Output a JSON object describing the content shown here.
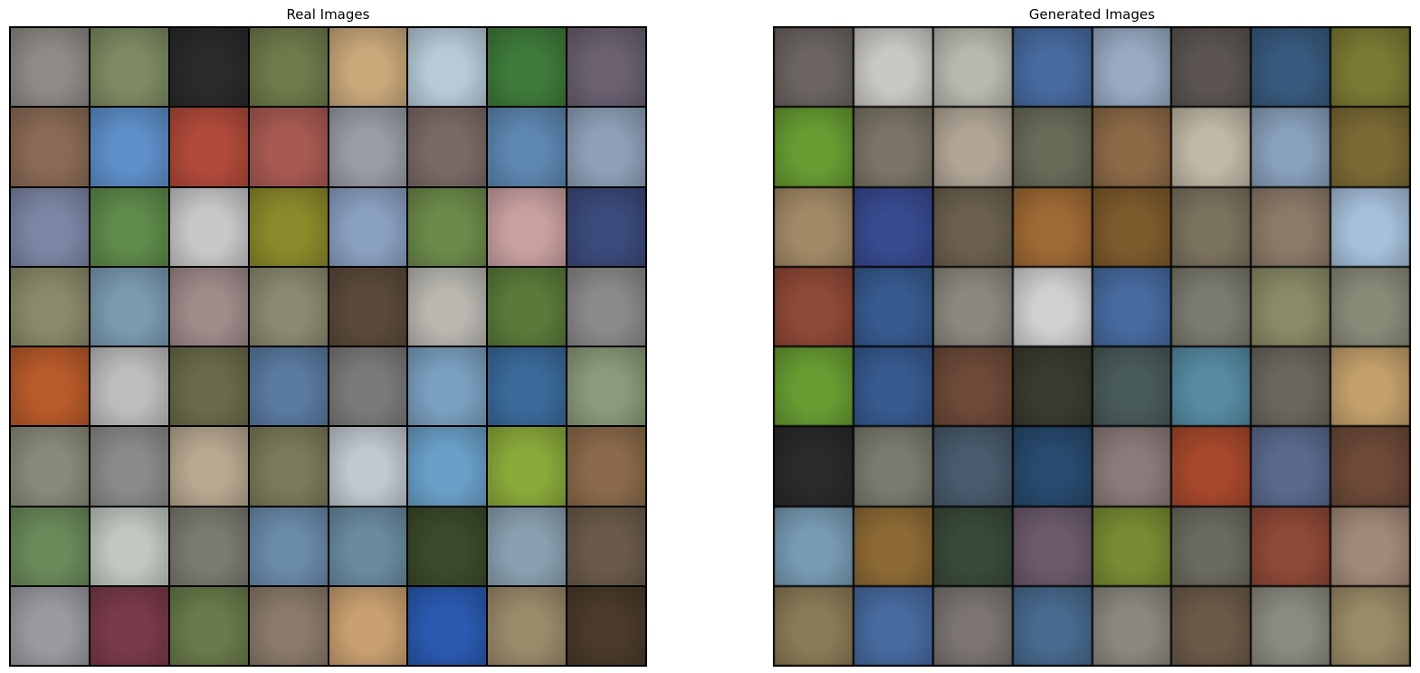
{
  "figure": {
    "panels": [
      {
        "id": "real",
        "title": "Real Images",
        "rows": 8,
        "cols": 8,
        "tiles": [
          [
            "#8e8a85",
            "#7d8a62",
            "#2a2a2a",
            "#6d7a4a",
            "#c9a87a",
            "#b7cad8",
            "#3e7a3a",
            "#6a6070"
          ],
          [
            "#8a6a55",
            "#5e8fc9",
            "#b14a3a",
            "#a85a52",
            "#9a9ca5",
            "#7a6a66",
            "#5d86b0",
            "#8ea0b8"
          ],
          [
            "#7c86a4",
            "#5e8a4a",
            "#c9c7c9",
            "#8a8a2a",
            "#8aa0c0",
            "#6c8a4a",
            "#c9a0a0",
            "#3a4a7a"
          ],
          [
            "#8a8a6a",
            "#7a9ab0",
            "#a08a8a",
            "#8a8a70",
            "#5a4a3a",
            "#b9b7b0",
            "#5a7a3a",
            "#8a8a8a"
          ],
          [
            "#b85a2a",
            "#bdbdbd",
            "#6a6a4a",
            "#5a7aa0",
            "#7a7a7a",
            "#7aa0c0",
            "#3a6a9a",
            "#8a9a7a"
          ],
          [
            "#8a8a7a",
            "#8a8a8a",
            "#b8a890",
            "#7a7a5a",
            "#c0c8d0",
            "#6aa0c8",
            "#8aaa3a",
            "#8a6a4a"
          ],
          [
            "#6a8a5a",
            "#c0c8c0",
            "#7a7a70",
            "#6a8aaa",
            "#6a8aa0",
            "#3a4a2a",
            "#8aa0b0",
            "#6a5a4a"
          ],
          [
            "#9a9aa0",
            "#7a3a4a",
            "#6a7a4a",
            "#8a7a6a",
            "#c9a070",
            "#2a5ab0",
            "#9a8a6a",
            "#4a3a2a"
          ]
        ]
      },
      {
        "id": "generated",
        "title": "Generated Images",
        "rows": 8,
        "cols": 8,
        "tiles": [
          [
            "#6a6460",
            "#c9c8c4",
            "#b7b8b0",
            "#4a6a9a",
            "#9aaac0",
            "#5a5450",
            "#3a5a7a",
            "#7a7a3a"
          ],
          [
            "#6a9a3a",
            "#7a7468",
            "#b0a698",
            "#6a6a5a",
            "#8a6a4a",
            "#c0b8a8",
            "#8aa0b8",
            "#7a6a3a"
          ],
          [
            "#a08a6a",
            "#3a4a8a",
            "#6a6050",
            "#9a6a3a",
            "#7a5a30",
            "#7a7260",
            "#8a7a6a",
            "#a8c0d8"
          ],
          [
            "#8a4a3a",
            "#3a5a8a",
            "#8a8880",
            "#d0d0d0",
            "#4a6a9a",
            "#7a7a70",
            "#8a8a6a",
            "#8a8a7a"
          ],
          [
            "#6a9a3a",
            "#3a5a8a",
            "#6a4a3a",
            "#3a3a30",
            "#4a5a5a",
            "#5a8aa0",
            "#6a6660",
            "#c0a070"
          ],
          [
            "#2a2a2a",
            "#7a7a70",
            "#4a5a6a",
            "#2a4a6a",
            "#8a7a7a",
            "#a04a30",
            "#5a6a8a",
            "#6a4a3a"
          ],
          [
            "#7a9ab0",
            "#8a6a3a",
            "#3a4a3a",
            "#6a5a6a",
            "#7a8a3a",
            "#6a6a60",
            "#8a4a3a",
            "#a08a7a"
          ],
          [
            "#8a7a5a",
            "#4a6a9a",
            "#7a7470",
            "#4a6a8a",
            "#8a8880",
            "#6a5a4a",
            "#8a8a80",
            "#9a8a6a"
          ]
        ]
      }
    ]
  }
}
